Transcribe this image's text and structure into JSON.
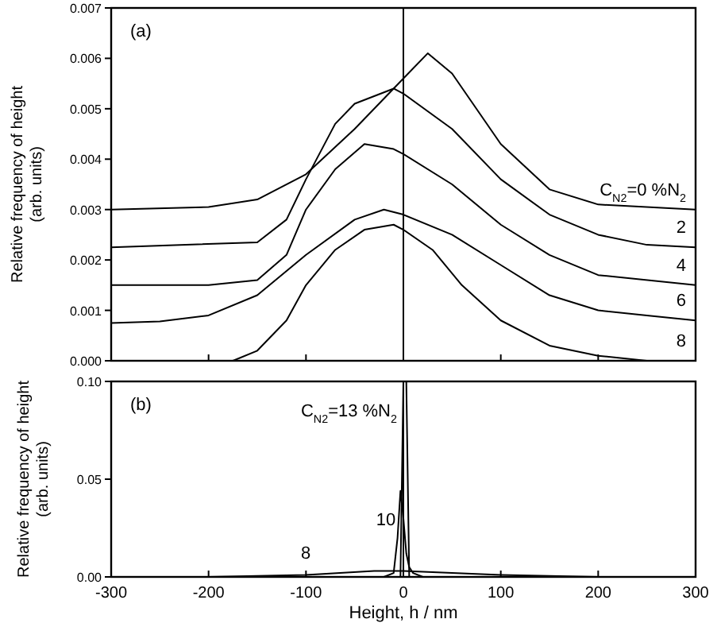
{
  "chart_data": [
    {
      "type": "line",
      "title": "(a)",
      "ylabel": "Relative frequency of height (arb. units)",
      "xlim": [
        -300,
        300
      ],
      "ylim": [
        0,
        0.007
      ],
      "xticks": [
        {
          "value": -300,
          "label": null
        },
        {
          "value": -200,
          "label": null
        },
        {
          "value": -100,
          "label": null
        },
        {
          "value": 0,
          "label": null
        },
        {
          "value": 100,
          "label": null
        },
        {
          "value": 200,
          "label": null
        },
        {
          "value": 300,
          "label": null
        }
      ],
      "yticks": [
        {
          "value": 0,
          "label": "0.000"
        },
        {
          "value": 0.001,
          "label": "0.001"
        },
        {
          "value": 0.002,
          "label": "0.002"
        },
        {
          "value": 0.003,
          "label": "0.003"
        },
        {
          "value": 0.004,
          "label": "0.004"
        },
        {
          "value": 0.005,
          "label": "0.005"
        },
        {
          "value": 0.006,
          "label": "0.006"
        },
        {
          "value": 0.007,
          "label": "0.007"
        }
      ],
      "tick_labels": "y",
      "ref_lines": [
        {
          "axis": "x",
          "value": 0,
          "color": "#000000"
        }
      ],
      "series": [
        {
          "name": "C$_{N2}$=0 %N$_{2}$",
          "color": "#000000",
          "x": [
            -300,
            -200,
            -150,
            -100,
            -50,
            0,
            25,
            50,
            100,
            150,
            200,
            300
          ],
          "values": [
            0.003,
            0.00305,
            0.0032,
            0.0037,
            0.0046,
            0.0056,
            0.0061,
            0.0057,
            0.0043,
            0.0034,
            0.0031,
            0.003
          ]
        },
        {
          "name": "2",
          "color": "#000000",
          "x": [
            -300,
            -150,
            -120,
            -100,
            -70,
            -50,
            -10,
            0,
            50,
            100,
            150,
            200,
            250,
            300
          ],
          "values": [
            0.00225,
            0.00235,
            0.0028,
            0.0036,
            0.0047,
            0.0051,
            0.0054,
            0.0053,
            0.0046,
            0.0036,
            0.0029,
            0.0025,
            0.0023,
            0.00225
          ]
        },
        {
          "name": "4",
          "color": "#000000",
          "x": [
            -300,
            -200,
            -150,
            -120,
            -100,
            -70,
            -40,
            -10,
            0,
            50,
            100,
            150,
            200,
            300
          ],
          "values": [
            0.0015,
            0.0015,
            0.0016,
            0.0021,
            0.003,
            0.0038,
            0.0043,
            0.0042,
            0.0041,
            0.0035,
            0.0027,
            0.0021,
            0.0017,
            0.0015
          ]
        },
        {
          "name": "6",
          "color": "#000000",
          "x": [
            -300,
            -250,
            -200,
            -150,
            -100,
            -50,
            -20,
            0,
            50,
            100,
            150,
            200,
            250,
            300
          ],
          "values": [
            0.00075,
            0.00078,
            0.0009,
            0.0013,
            0.0021,
            0.0028,
            0.003,
            0.0029,
            0.0025,
            0.0019,
            0.0013,
            0.001,
            0.0009,
            0.0008
          ]
        },
        {
          "name": "8",
          "color": "#000000",
          "x": [
            -300,
            -175,
            -150,
            -120,
            -100,
            -70,
            -40,
            -10,
            0,
            30,
            60,
            100,
            150,
            200,
            250,
            300
          ],
          "values": [
            0,
            0,
            0.0002,
            0.0008,
            0.0015,
            0.0022,
            0.0026,
            0.0027,
            0.0026,
            0.0022,
            0.0015,
            0.0008,
            0.0003,
            0.0001,
            0,
            0
          ]
        }
      ]
    },
    {
      "type": "line",
      "title": "(b)",
      "xlabel": "Height, h / nm",
      "ylabel": "Relative frequency of height (arb. units)",
      "xlim": [
        -300,
        300
      ],
      "ylim": [
        0,
        0.1
      ],
      "xticks": [
        -300,
        -200,
        -100,
        0,
        100,
        200,
        300
      ],
      "yticks": [
        {
          "value": 0,
          "label": "0.00"
        },
        {
          "value": 0.05,
          "label": "0.05"
        },
        {
          "value": 0.1,
          "label": "0.10"
        }
      ],
      "ref_lines": [
        {
          "axis": "x",
          "value": 0,
          "color": "#000000"
        }
      ],
      "series": [
        {
          "name": "8",
          "color": "#000000",
          "x": [
            -300,
            -200,
            -100,
            -30,
            0,
            50,
            100,
            200,
            300
          ],
          "values": [
            0,
            0,
            0.001,
            0.003,
            0.003,
            0.002,
            0.001,
            0,
            0
          ]
        },
        {
          "name": "10",
          "color": "#000000",
          "x": [
            -300,
            -20,
            -10,
            -6,
            -3,
            0,
            3,
            6,
            10,
            20,
            300
          ],
          "values": [
            0,
            0,
            0.002,
            0.02,
            0.044,
            0.03,
            0.012,
            0.005,
            0.002,
            0,
            0
          ]
        },
        {
          "name": "C$_{N2}$=13 %N$_{2}$",
          "color": "#000000",
          "x": [
            -300,
            -3,
            0,
            3,
            6,
            300
          ],
          "values": [
            0,
            0,
            0.1,
            0.1,
            0,
            0
          ]
        }
      ]
    }
  ]
}
